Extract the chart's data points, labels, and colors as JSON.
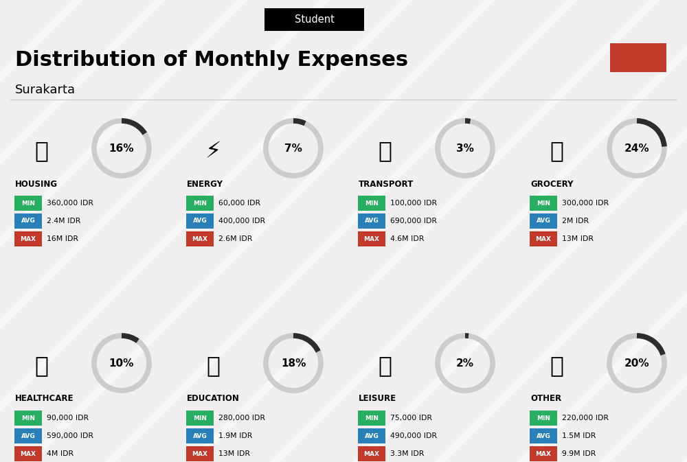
{
  "title": "Distribution of Monthly Expenses",
  "subtitle": "Surakarta",
  "header_label": "Student",
  "bg_color": "#f0eeee",
  "accent_color": "#c0392b",
  "categories": [
    {
      "name": "HOUSING",
      "pct": 16,
      "min": "360,000 IDR",
      "avg": "2.4M IDR",
      "max": "16M IDR",
      "col": 0,
      "row": 0
    },
    {
      "name": "ENERGY",
      "pct": 7,
      "min": "60,000 IDR",
      "avg": "400,000 IDR",
      "max": "2.6M IDR",
      "col": 1,
      "row": 0
    },
    {
      "name": "TRANSPORT",
      "pct": 3,
      "min": "100,000 IDR",
      "avg": "690,000 IDR",
      "max": "4.6M IDR",
      "col": 2,
      "row": 0
    },
    {
      "name": "GROCERY",
      "pct": 24,
      "min": "300,000 IDR",
      "avg": "2M IDR",
      "max": "13M IDR",
      "col": 3,
      "row": 0
    },
    {
      "name": "HEALTHCARE",
      "pct": 10,
      "min": "90,000 IDR",
      "avg": "590,000 IDR",
      "max": "4M IDR",
      "col": 0,
      "row": 1
    },
    {
      "name": "EDUCATION",
      "pct": 18,
      "min": "280,000 IDR",
      "avg": "1.9M IDR",
      "max": "13M IDR",
      "col": 1,
      "row": 1
    },
    {
      "name": "LEISURE",
      "pct": 2,
      "min": "75,000 IDR",
      "avg": "490,000 IDR",
      "max": "3.3M IDR",
      "col": 2,
      "row": 1
    },
    {
      "name": "OTHER",
      "pct": 20,
      "min": "220,000 IDR",
      "avg": "1.5M IDR",
      "max": "9.9M IDR",
      "col": 3,
      "row": 1
    }
  ],
  "min_color": "#27ae60",
  "avg_color": "#2980b9",
  "max_color": "#c0392b",
  "circle_color_dark": "#2c2c2c",
  "circle_color_light": "#cccccc"
}
